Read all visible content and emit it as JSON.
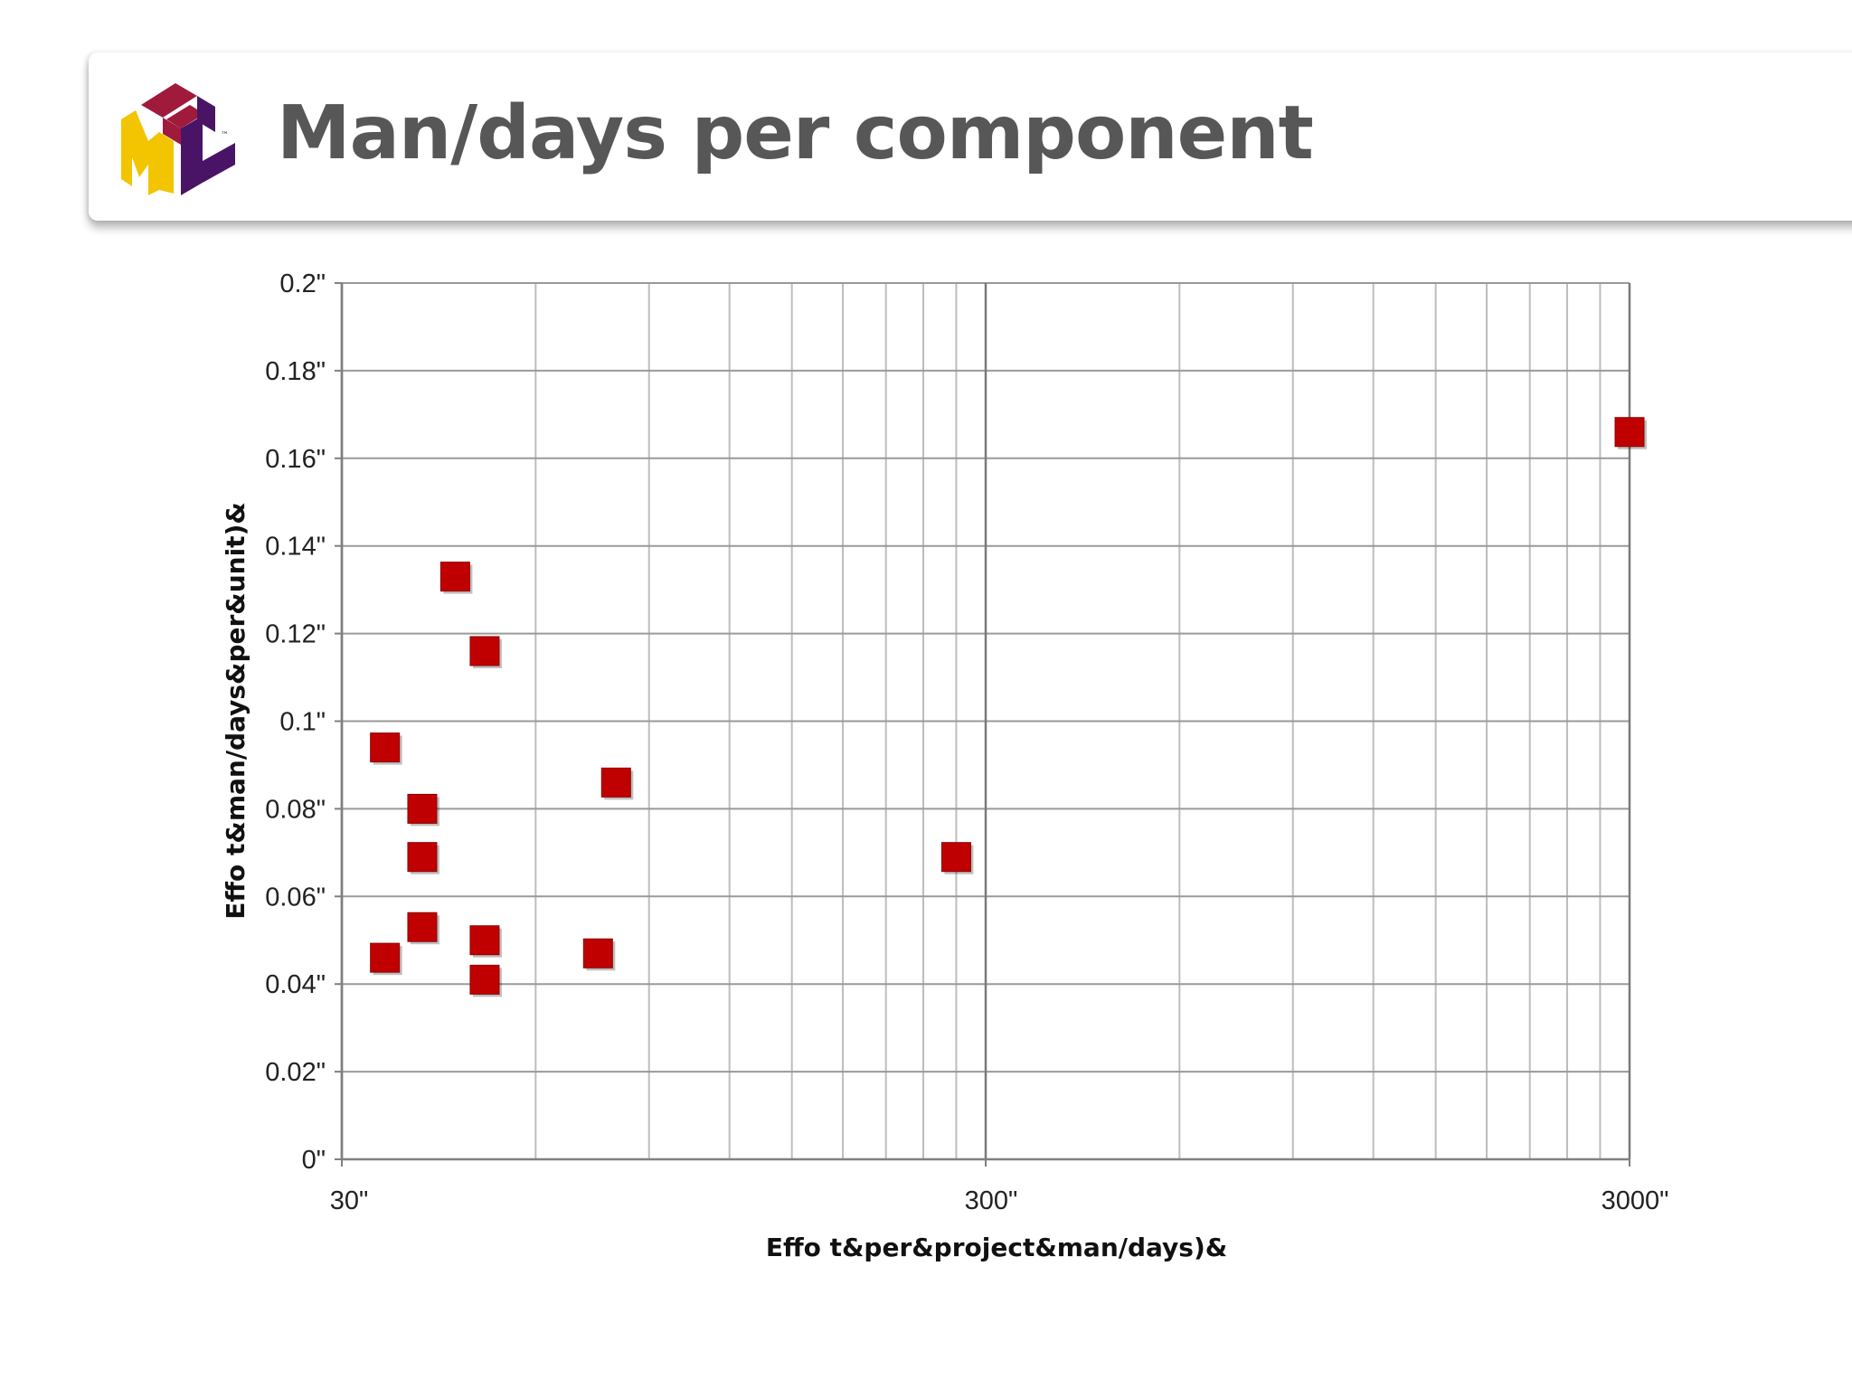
{
  "slide": {
    "title": "Man/days per component"
  },
  "logo": {
    "name": "IFML logo",
    "letters": "IFML",
    "trademark": "™",
    "colors": {
      "yellow": "#F2C500",
      "purple": "#4A1466",
      "crimson": "#A01A3C"
    }
  },
  "chart_data": {
    "type": "scatter",
    "xlabel": "Effo t&per&project&man/days)&",
    "ylabel": "Effo t&man/days&per&unit)&",
    "x_scale": "log",
    "xlim": [
      30,
      3000
    ],
    "ylim": [
      0,
      0.2
    ],
    "grid": true,
    "x_ticks": [
      {
        "value": 30,
        "label": "30\""
      },
      {
        "value": 300,
        "label": "300\""
      },
      {
        "value": 3000,
        "label": "3000\""
      }
    ],
    "y_ticks": [
      {
        "value": 0,
        "label": "0\""
      },
      {
        "value": 0.02,
        "label": "0.02\""
      },
      {
        "value": 0.04,
        "label": "0.04\""
      },
      {
        "value": 0.06,
        "label": "0.06\""
      },
      {
        "value": 0.08,
        "label": "0.08\""
      },
      {
        "value": 0.1,
        "label": "0.1\""
      },
      {
        "value": 0.12,
        "label": "0.12\""
      },
      {
        "value": 0.14,
        "label": "0.14\""
      },
      {
        "value": 0.16,
        "label": "0.16\""
      },
      {
        "value": 0.18,
        "label": "0.18\""
      },
      {
        "value": 0.2,
        "label": "0.2\""
      }
    ],
    "marker_color": "#C00000",
    "marker": "square",
    "points": [
      {
        "x": 35,
        "y": 0.094
      },
      {
        "x": 35,
        "y": 0.046
      },
      {
        "x": 40,
        "y": 0.08
      },
      {
        "x": 40,
        "y": 0.069
      },
      {
        "x": 40,
        "y": 0.053
      },
      {
        "x": 45,
        "y": 0.133
      },
      {
        "x": 50,
        "y": 0.116
      },
      {
        "x": 50,
        "y": 0.05
      },
      {
        "x": 50,
        "y": 0.041
      },
      {
        "x": 75,
        "y": 0.047
      },
      {
        "x": 80,
        "y": 0.086
      },
      {
        "x": 270,
        "y": 0.069
      },
      {
        "x": 3000,
        "y": 0.166
      }
    ]
  }
}
